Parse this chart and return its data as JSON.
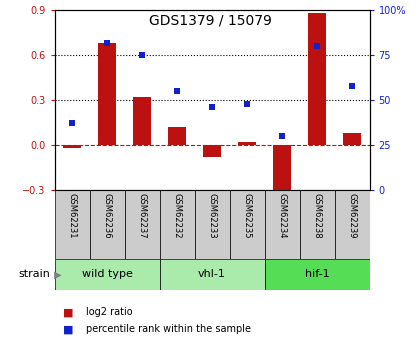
{
  "title": "GDS1379 / 15079",
  "samples": [
    "GSM62231",
    "GSM62236",
    "GSM62237",
    "GSM62232",
    "GSM62233",
    "GSM62235",
    "GSM62234",
    "GSM62238",
    "GSM62239"
  ],
  "log2_ratio": [
    -0.02,
    0.68,
    0.32,
    0.12,
    -0.08,
    0.02,
    -0.32,
    0.88,
    0.08
  ],
  "percentile_rank": [
    37,
    82,
    75,
    55,
    46,
    48,
    30,
    80,
    58
  ],
  "bar_color": "#bb1111",
  "dot_color": "#1122cc",
  "ylim_left": [
    -0.3,
    0.9
  ],
  "ylim_right": [
    0,
    100
  ],
  "yticks_left": [
    -0.3,
    0.0,
    0.3,
    0.6,
    0.9
  ],
  "yticks_right": [
    0,
    25,
    50,
    75,
    100
  ],
  "hline_dotted": [
    0.3,
    0.6
  ],
  "hline_dash": 0.0,
  "group_configs": [
    {
      "label": "wild type",
      "span": 3,
      "color": "#aaeaaa"
    },
    {
      "label": "vhl-1",
      "span": 3,
      "color": "#aaeaaa"
    },
    {
      "label": "hif-1",
      "span": 3,
      "color": "#55dd55"
    }
  ],
  "label_color": "#cccccc",
  "legend_items": [
    {
      "color": "#bb1111",
      "label": "log2 ratio"
    },
    {
      "color": "#1122cc",
      "label": "percentile rank within the sample"
    }
  ]
}
